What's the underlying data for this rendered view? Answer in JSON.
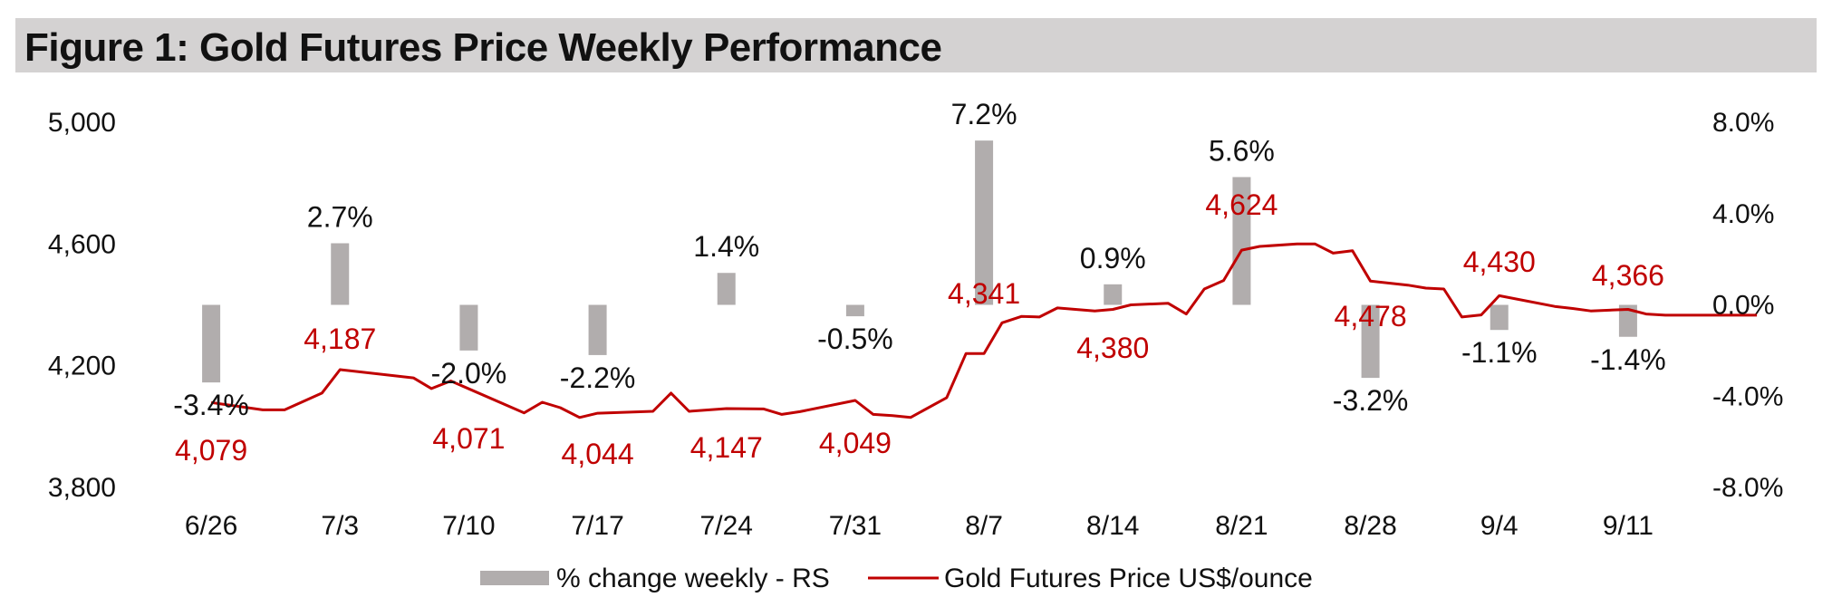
{
  "title": "Figure 1: Gold Futures Price Weekly Performance",
  "colors": {
    "bars": "#b1adad",
    "line": "#c00000",
    "text": "#111111",
    "title_bg": "#d4d2d2"
  },
  "chart_data": {
    "type": "bar+line",
    "categories": [
      "6/26",
      "7/3",
      "7/10",
      "7/17",
      "7/24",
      "7/31",
      "8/7",
      "8/14",
      "8/21",
      "8/28",
      "9/4",
      "9/11"
    ],
    "y_left": {
      "ticks": [
        "3,800",
        "4,200",
        "4,600",
        "5,000"
      ],
      "range": [
        3800,
        5000
      ]
    },
    "y_right": {
      "ticks": [
        "-8.0%",
        "-4.0%",
        "0.0%",
        "4.0%",
        "8.0%"
      ],
      "range": [
        -8,
        8
      ]
    },
    "series": [
      {
        "name": "% change weekly - RS",
        "axis": "right",
        "values": [
          -3.4,
          2.7,
          -2.0,
          -2.2,
          1.4,
          -0.5,
          7.2,
          0.9,
          5.6,
          -3.2,
          -1.1,
          -1.4
        ],
        "labels": [
          "-3.4%",
          "2.7%",
          "-2.0%",
          "-2.2%",
          "1.4%",
          "-0.5%",
          "7.2%",
          "0.9%",
          "5.6%",
          "-3.2%",
          "-1.1%",
          "-1.4%"
        ]
      },
      {
        "name": "Gold Futures Price US$/ounce",
        "axis": "left",
        "x": [
          0,
          0.4,
          0.57,
          0.86,
          1.0,
          1.57,
          1.71,
          1.86,
          2.43,
          2.57,
          2.71,
          2.86,
          3.0,
          3.43,
          3.57,
          3.71,
          4.0,
          4.29,
          4.43,
          4.57,
          5.0,
          5.14,
          5.29,
          5.43,
          5.71,
          5.86,
          6.0,
          6.14,
          6.29,
          6.43,
          6.57,
          6.86,
          7.0,
          7.14,
          7.43,
          7.57,
          7.71,
          7.86,
          8.0,
          8.14,
          8.43,
          8.57,
          8.71,
          8.86,
          9.0,
          9.29,
          9.43,
          9.57,
          9.71,
          9.86,
          10.0,
          10.43,
          10.57,
          10.71,
          11.0,
          11.14,
          11.29,
          11.43,
          11.57,
          11.71,
          11.86,
          12.0
        ],
        "values": [
          4079,
          4055,
          4055,
          4110,
          4187,
          4160,
          4125,
          4150,
          4045,
          4080,
          4062,
          4030,
          4044,
          4050,
          4110,
          4050,
          4059,
          4058,
          4040,
          4049,
          4086,
          4040,
          4036,
          4030,
          4095,
          4240,
          4240,
          4341,
          4362,
          4360,
          4390,
          4380,
          4385,
          4400,
          4405,
          4370,
          4452,
          4480,
          4580,
          4592,
          4600,
          4600,
          4570,
          4578,
          4478,
          4465,
          4455,
          4452,
          4360,
          4367,
          4430,
          4395,
          4388,
          4380,
          4385,
          4370,
          4366,
          4366,
          4366,
          4366,
          4366,
          4366
        ],
        "labels": [
          "4,079",
          "4,187",
          "4,071",
          "4,044",
          "4,147",
          "4,049",
          "4,341",
          "4,380",
          "4,624",
          "4,478",
          "4,430",
          "4,366"
        ]
      }
    ],
    "legend_position": "bottom",
    "grid": false
  }
}
